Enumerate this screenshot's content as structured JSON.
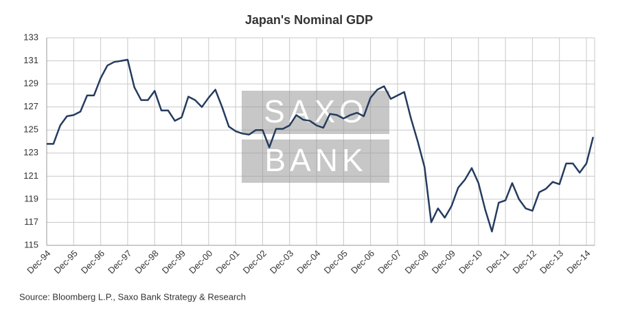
{
  "chart_data": {
    "type": "line",
    "title": "Japan's Nominal GDP",
    "source": "Source: Bloomberg L.P., Saxo Bank Strategy & Research",
    "watermark": [
      "SAXO",
      "BANK"
    ],
    "categories": [
      "Dec-94",
      null,
      null,
      null,
      "Dec-95",
      null,
      null,
      null,
      "Dec-96",
      null,
      null,
      null,
      "Dec-97",
      null,
      null,
      null,
      "Dec-98",
      null,
      null,
      null,
      "Dec-99",
      null,
      null,
      null,
      "Dec-00",
      null,
      null,
      null,
      "Dec-01",
      null,
      null,
      null,
      "Dec-02",
      null,
      null,
      null,
      "Dec-03",
      null,
      null,
      null,
      "Dec-04",
      null,
      null,
      null,
      "Dec-05",
      null,
      null,
      null,
      "Dec-06",
      null,
      null,
      null,
      "Dec-07",
      null,
      null,
      null,
      "Dec-08",
      null,
      null,
      null,
      "Dec-09",
      null,
      null,
      null,
      "Dec-10",
      null,
      null,
      null,
      "Dec-11",
      null,
      null,
      null,
      "Dec-12",
      null,
      null,
      null,
      "Dec-13",
      null,
      null,
      null,
      "Dec-14",
      null
    ],
    "series": [
      {
        "name": "Japan's Nominal GDP",
        "color": "#243b5e",
        "values": [
          123.8,
          123.8,
          125.4,
          126.2,
          126.3,
          126.6,
          128.0,
          128.0,
          129.5,
          130.6,
          130.9,
          131.0,
          131.1,
          128.7,
          127.6,
          127.6,
          128.4,
          126.7,
          126.7,
          125.8,
          126.1,
          127.9,
          127.6,
          127.0,
          127.8,
          128.5,
          127.0,
          125.3,
          124.9,
          124.7,
          124.6,
          125.0,
          125.0,
          123.5,
          125.1,
          125.1,
          125.4,
          126.3,
          125.9,
          125.8,
          125.4,
          125.2,
          126.4,
          126.3,
          126.0,
          126.3,
          126.5,
          126.2,
          127.8,
          128.5,
          128.8,
          127.7,
          128.0,
          128.3,
          126.0,
          124.0,
          121.8,
          117.0,
          118.2,
          117.4,
          118.4,
          120.0,
          120.7,
          121.7,
          120.4,
          118.1,
          116.2,
          118.7,
          118.9,
          120.4,
          119.0,
          118.2,
          118.0,
          119.6,
          119.9,
          120.5,
          120.3,
          122.1,
          122.1,
          121.3,
          122.1,
          124.4
        ]
      }
    ],
    "ylim": [
      115,
      133
    ],
    "yticks": [
      115,
      117,
      119,
      121,
      123,
      125,
      127,
      129,
      131,
      133
    ],
    "grid": true
  }
}
